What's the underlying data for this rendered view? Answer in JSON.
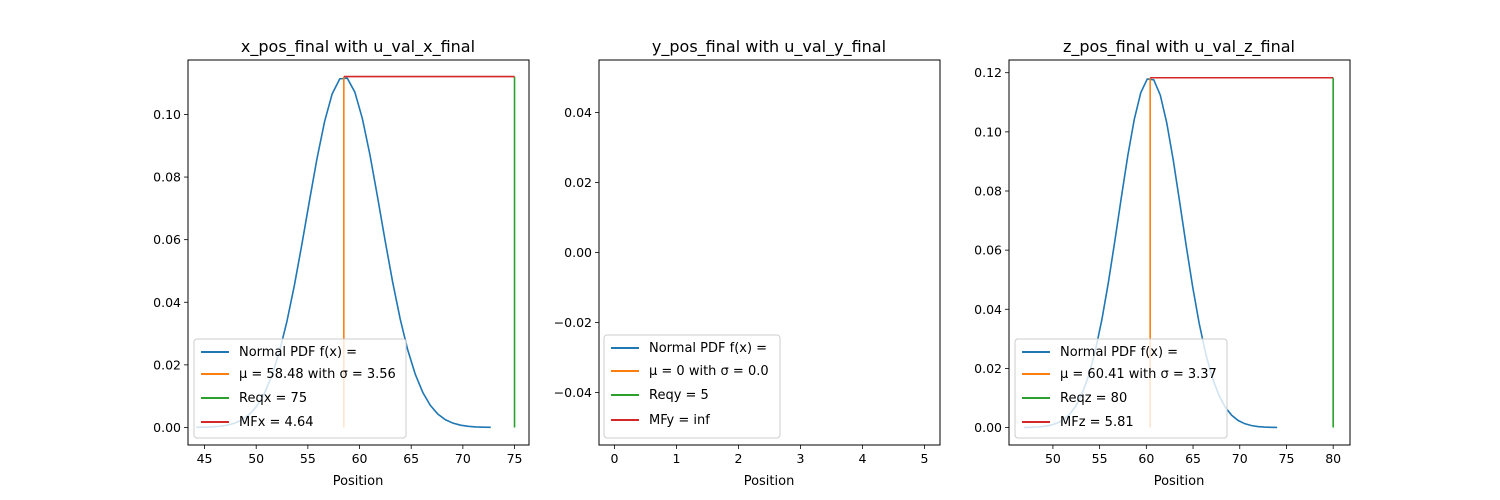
{
  "figure": {
    "colors": {
      "pdf": "#1f77b4",
      "mu": "#ff7f0e",
      "req": "#2ca02c",
      "mf": "#d62728",
      "frame": "#000000",
      "legend_border": "#cccccc"
    }
  },
  "chart_data": [
    {
      "type": "line",
      "title": "x_pos_final with u_val_x_final",
      "xlabel": "Position",
      "ylabel": "",
      "xlim": [
        43.4,
        76.4
      ],
      "ylim": [
        -0.0056,
        0.1174
      ],
      "xticks": [
        45,
        50,
        55,
        60,
        65,
        70,
        75
      ],
      "yticks": [
        0.0,
        0.02,
        0.04,
        0.06,
        0.08,
        0.1
      ],
      "ytick_labels": [
        "0.00",
        "0.02",
        "0.04",
        "0.06",
        "0.08",
        "0.10"
      ],
      "mu": 58.48,
      "sigma": 3.56,
      "pdf_range": [
        44.2,
        72.7
      ],
      "req": 75,
      "peak": 0.1121,
      "legend_position": "lower-left",
      "legend": {
        "pdf": "Normal PDF f(x) =",
        "mu_label": "μ = 58.48 with σ = 3.56",
        "req_label": "Reqx = 75",
        "mf_label": "MFx = 4.64"
      }
    },
    {
      "type": "line",
      "title": "y_pos_final with u_val_y_final",
      "xlabel": "Position",
      "ylabel": "",
      "xlim": [
        -0.25,
        5.25
      ],
      "ylim": [
        -0.055,
        0.055
      ],
      "xticks": [
        0,
        1,
        2,
        3,
        4,
        5
      ],
      "yticks": [
        -0.04,
        -0.02,
        0.0,
        0.02,
        0.04
      ],
      "ytick_labels": [
        "−0.04",
        "−0.02",
        "0.00",
        "0.02",
        "0.04"
      ],
      "mu": 0,
      "sigma": 0.0,
      "req": 5,
      "legend_position": "lower-left",
      "legend": {
        "pdf": "Normal PDF f(x) =",
        "mu_label": "μ = 0 with σ = 0.0",
        "req_label": "Reqy = 5",
        "mf_label": "MFy = inf"
      }
    },
    {
      "type": "line",
      "title": "z_pos_final with u_val_z_final",
      "xlabel": "Position",
      "ylabel": "",
      "xlim": [
        45.3,
        81.8
      ],
      "ylim": [
        -0.0059,
        0.1243
      ],
      "xticks": [
        50,
        55,
        60,
        65,
        70,
        75,
        80
      ],
      "yticks": [
        0.0,
        0.02,
        0.04,
        0.06,
        0.08,
        0.1,
        0.12
      ],
      "ytick_labels": [
        "0.00",
        "0.02",
        "0.04",
        "0.06",
        "0.08",
        "0.10",
        "0.12"
      ],
      "mu": 60.41,
      "sigma": 3.37,
      "pdf_range": [
        46.9,
        74.0
      ],
      "req": 80,
      "peak": 0.1183,
      "legend_position": "lower-left",
      "legend": {
        "pdf": "Normal PDF f(x) =",
        "mu_label": "μ = 60.41 with σ = 3.37",
        "req_label": "Reqz = 80",
        "mf_label": "MFz = 5.81"
      }
    }
  ]
}
